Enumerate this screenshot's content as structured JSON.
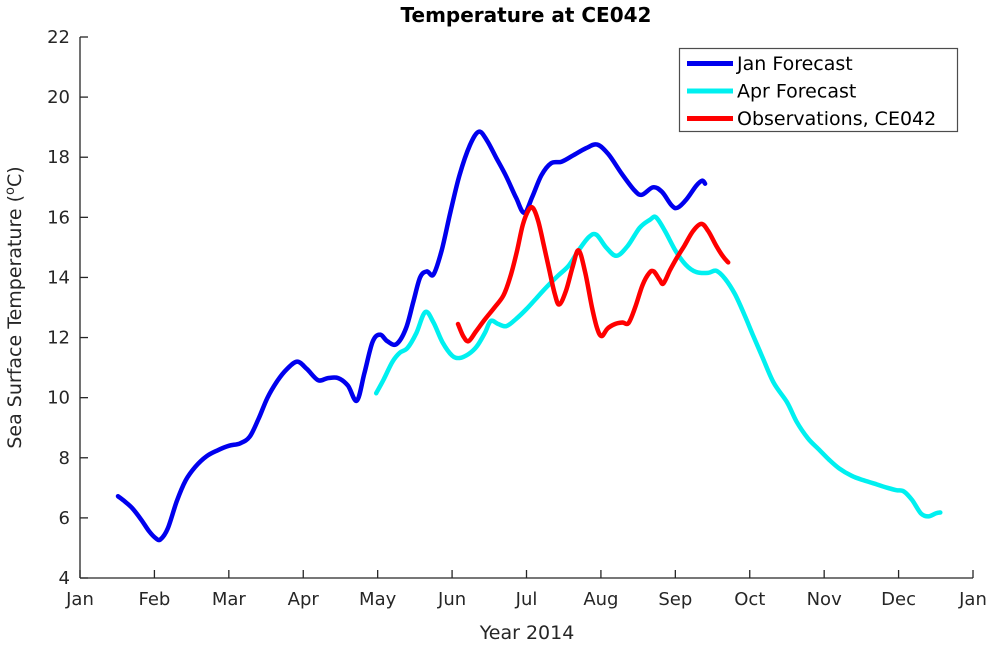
{
  "chart_data": {
    "type": "line",
    "title": "Temperature at CE042",
    "xlabel": "Year 2014",
    "ylabel": "Sea Surface Temperature (°C)",
    "ylabel_parts": {
      "prefix": "Sea Surface Temperature (",
      "sup": "o",
      "suffix": "C)"
    },
    "axes": {
      "x_tick_labels": [
        "Jan",
        "Feb",
        "Mar",
        "Apr",
        "May",
        "Jun",
        "Jul",
        "Aug",
        "Sep",
        "Oct",
        "Nov",
        "Dec",
        "Jan"
      ],
      "x_range_months": [
        0,
        12
      ],
      "y_ticks": [
        4,
        6,
        8,
        10,
        12,
        14,
        16,
        18,
        20,
        22
      ],
      "y_range": [
        4,
        22
      ],
      "grid": "off",
      "box": "off",
      "tick_direction": "in",
      "axis_color": "#262626"
    },
    "legend": {
      "position": "top-right",
      "border_color": "#4d4d4d",
      "entries": [
        "Jan Forecast",
        "Apr Forecast",
        "Observations, CE042"
      ]
    },
    "series": [
      {
        "name": "Jan Forecast",
        "color": "#0000ee",
        "points": [
          [
            0.51,
            6.72
          ],
          [
            0.6,
            6.55
          ],
          [
            0.7,
            6.33
          ],
          [
            0.82,
            5.95
          ],
          [
            0.93,
            5.55
          ],
          [
            1.02,
            5.32
          ],
          [
            1.08,
            5.28
          ],
          [
            1.18,
            5.65
          ],
          [
            1.3,
            6.55
          ],
          [
            1.42,
            7.25
          ],
          [
            1.55,
            7.7
          ],
          [
            1.7,
            8.05
          ],
          [
            1.85,
            8.25
          ],
          [
            2.0,
            8.4
          ],
          [
            2.15,
            8.48
          ],
          [
            2.28,
            8.7
          ],
          [
            2.4,
            9.3
          ],
          [
            2.52,
            10.0
          ],
          [
            2.65,
            10.55
          ],
          [
            2.78,
            10.95
          ],
          [
            2.92,
            11.2
          ],
          [
            3.05,
            10.95
          ],
          [
            3.2,
            10.58
          ],
          [
            3.33,
            10.65
          ],
          [
            3.47,
            10.65
          ],
          [
            3.6,
            10.4
          ],
          [
            3.72,
            9.9
          ],
          [
            3.82,
            10.8
          ],
          [
            3.93,
            11.85
          ],
          [
            4.03,
            12.1
          ],
          [
            4.13,
            11.88
          ],
          [
            4.25,
            11.78
          ],
          [
            4.38,
            12.3
          ],
          [
            4.48,
            13.2
          ],
          [
            4.57,
            14.0
          ],
          [
            4.66,
            14.2
          ],
          [
            4.75,
            14.1
          ],
          [
            4.86,
            14.9
          ],
          [
            4.98,
            16.2
          ],
          [
            5.1,
            17.4
          ],
          [
            5.24,
            18.4
          ],
          [
            5.36,
            18.85
          ],
          [
            5.47,
            18.55
          ],
          [
            5.6,
            17.95
          ],
          [
            5.73,
            17.35
          ],
          [
            5.86,
            16.65
          ],
          [
            5.97,
            16.15
          ],
          [
            6.08,
            16.7
          ],
          [
            6.2,
            17.4
          ],
          [
            6.33,
            17.8
          ],
          [
            6.47,
            17.85
          ],
          [
            6.62,
            18.05
          ],
          [
            6.8,
            18.3
          ],
          [
            6.95,
            18.42
          ],
          [
            7.1,
            18.1
          ],
          [
            7.28,
            17.45
          ],
          [
            7.45,
            16.9
          ],
          [
            7.55,
            16.75
          ],
          [
            7.7,
            17.0
          ],
          [
            7.82,
            16.85
          ],
          [
            7.95,
            16.4
          ],
          [
            8.03,
            16.32
          ],
          [
            8.15,
            16.6
          ],
          [
            8.28,
            17.05
          ],
          [
            8.36,
            17.22
          ],
          [
            8.4,
            17.12
          ]
        ]
      },
      {
        "name": "Apr Forecast",
        "color": "#00f0f0",
        "points": [
          [
            3.98,
            10.15
          ],
          [
            4.08,
            10.6
          ],
          [
            4.2,
            11.2
          ],
          [
            4.3,
            11.5
          ],
          [
            4.4,
            11.65
          ],
          [
            4.52,
            12.15
          ],
          [
            4.64,
            12.85
          ],
          [
            4.75,
            12.5
          ],
          [
            4.87,
            11.85
          ],
          [
            5.0,
            11.4
          ],
          [
            5.1,
            11.32
          ],
          [
            5.22,
            11.45
          ],
          [
            5.33,
            11.7
          ],
          [
            5.44,
            12.15
          ],
          [
            5.52,
            12.55
          ],
          [
            5.62,
            12.45
          ],
          [
            5.73,
            12.38
          ],
          [
            5.86,
            12.62
          ],
          [
            6.0,
            12.95
          ],
          [
            6.13,
            13.3
          ],
          [
            6.27,
            13.68
          ],
          [
            6.42,
            14.05
          ],
          [
            6.57,
            14.4
          ],
          [
            6.7,
            14.9
          ],
          [
            6.84,
            15.35
          ],
          [
            6.94,
            15.42
          ],
          [
            7.07,
            15.0
          ],
          [
            7.21,
            14.72
          ],
          [
            7.36,
            15.05
          ],
          [
            7.52,
            15.65
          ],
          [
            7.66,
            15.92
          ],
          [
            7.74,
            16.0
          ],
          [
            7.86,
            15.55
          ],
          [
            8.0,
            14.9
          ],
          [
            8.14,
            14.42
          ],
          [
            8.28,
            14.18
          ],
          [
            8.44,
            14.15
          ],
          [
            8.55,
            14.22
          ],
          [
            8.67,
            13.95
          ],
          [
            8.8,
            13.45
          ],
          [
            8.93,
            12.75
          ],
          [
            9.04,
            12.1
          ],
          [
            9.17,
            11.35
          ],
          [
            9.32,
            10.5
          ],
          [
            9.5,
            9.85
          ],
          [
            9.63,
            9.2
          ],
          [
            9.78,
            8.65
          ],
          [
            9.92,
            8.3
          ],
          [
            10.06,
            7.95
          ],
          [
            10.2,
            7.65
          ],
          [
            10.37,
            7.4
          ],
          [
            10.53,
            7.25
          ],
          [
            10.7,
            7.12
          ],
          [
            10.85,
            7.0
          ],
          [
            10.97,
            6.92
          ],
          [
            11.07,
            6.88
          ],
          [
            11.18,
            6.6
          ],
          [
            11.3,
            6.15
          ],
          [
            11.4,
            6.05
          ],
          [
            11.5,
            6.15
          ],
          [
            11.56,
            6.18
          ]
        ]
      },
      {
        "name": "Observations, CE042",
        "color": "#ff0000",
        "points": [
          [
            5.08,
            12.45
          ],
          [
            5.15,
            12.05
          ],
          [
            5.22,
            11.88
          ],
          [
            5.32,
            12.2
          ],
          [
            5.44,
            12.6
          ],
          [
            5.57,
            13.0
          ],
          [
            5.69,
            13.4
          ],
          [
            5.78,
            14.0
          ],
          [
            5.87,
            14.85
          ],
          [
            5.95,
            15.75
          ],
          [
            6.03,
            16.25
          ],
          [
            6.09,
            16.3
          ],
          [
            6.16,
            15.85
          ],
          [
            6.23,
            15.1
          ],
          [
            6.31,
            14.2
          ],
          [
            6.38,
            13.45
          ],
          [
            6.44,
            13.1
          ],
          [
            6.53,
            13.55
          ],
          [
            6.62,
            14.35
          ],
          [
            6.7,
            14.9
          ],
          [
            6.79,
            14.15
          ],
          [
            6.88,
            13.0
          ],
          [
            6.95,
            12.3
          ],
          [
            7.01,
            12.05
          ],
          [
            7.09,
            12.3
          ],
          [
            7.19,
            12.45
          ],
          [
            7.29,
            12.5
          ],
          [
            7.37,
            12.48
          ],
          [
            7.46,
            13.0
          ],
          [
            7.56,
            13.75
          ],
          [
            7.65,
            14.15
          ],
          [
            7.71,
            14.2
          ],
          [
            7.79,
            13.92
          ],
          [
            7.84,
            13.8
          ],
          [
            7.93,
            14.25
          ],
          [
            8.02,
            14.65
          ],
          [
            8.12,
            15.05
          ],
          [
            8.24,
            15.55
          ],
          [
            8.35,
            15.78
          ],
          [
            8.44,
            15.55
          ],
          [
            8.55,
            15.05
          ],
          [
            8.64,
            14.7
          ],
          [
            8.71,
            14.5
          ]
        ]
      }
    ]
  }
}
